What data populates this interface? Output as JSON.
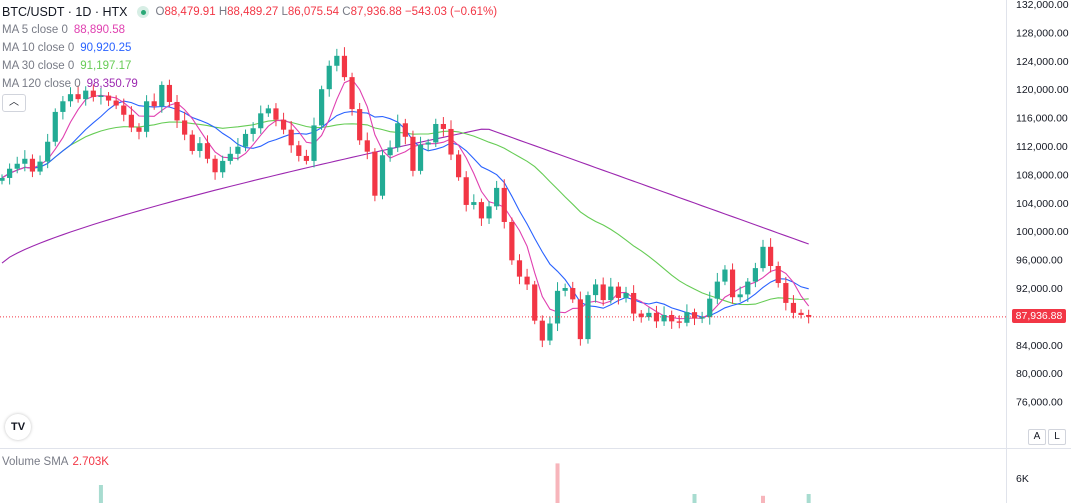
{
  "header": {
    "symbol": "BTC/USDT · 1D · HTX",
    "open_label": "O",
    "open": "88,479.91",
    "high_label": "H",
    "high": "88,489.27",
    "low_label": "L",
    "low": "86,075.54",
    "close_label": "C",
    "close": "87,936.88",
    "change": "−543.03 (−0.61%)"
  },
  "indicators": [
    {
      "label": "MA 5 close 0",
      "value": "88,890.58",
      "color": "#e040b0"
    },
    {
      "label": "MA 10 close 0",
      "value": "90,920.25",
      "color": "#2962ff"
    },
    {
      "label": "MA 30 close 0",
      "value": "91,197.17",
      "color": "#66cc55"
    },
    {
      "label": "MA 120 close 0",
      "value": "98,350.79",
      "color": "#9c27b0"
    }
  ],
  "collapse_icon": "chevron-up-icon",
  "logo_text": "TV",
  "volume": {
    "label": "Volume SMA",
    "value": "2.703K",
    "axis_tick": "6K"
  },
  "axis_buttons": [
    "A",
    "L"
  ],
  "last_price_label": "87,936.88",
  "colors": {
    "up": "#22ab94",
    "down": "#f23645",
    "last_price_line": "#f23645"
  },
  "chart_data": {
    "type": "candlestick",
    "ylim": [
      72000,
      132000
    ],
    "y_ticks": [
      "76,000.00",
      "80,000.00",
      "84,000.00",
      "88,000.00",
      "92,000.00",
      "96,000.00",
      "100,000.00",
      "104,000.00",
      "108,000.00",
      "112,000.00",
      "116,000.00",
      "120,000.00",
      "124,000.00",
      "128,000.00",
      "132,000.00"
    ],
    "y_tick_values": [
      76000,
      80000,
      84000,
      88000,
      92000,
      96000,
      100000,
      104000,
      108000,
      112000,
      116000,
      120000,
      124000,
      128000,
      132000
    ],
    "last_price": 87936.88,
    "close_series": [
      107500,
      108800,
      109500,
      110200,
      108400,
      109800,
      112600,
      116800,
      118300,
      119300,
      118600,
      119800,
      118900,
      119100,
      118400,
      117700,
      116400,
      114600,
      114000,
      118300,
      117600,
      120600,
      118200,
      115600,
      113600,
      111300,
      112400,
      110200,
      108300,
      109900,
      110900,
      111900,
      113700,
      114500,
      116600,
      117300,
      115700,
      114300,
      112100,
      110600,
      109900,
      114900,
      120000,
      123300,
      124700,
      121700,
      117200,
      112800,
      111200,
      105000,
      110700,
      111800,
      115200,
      113300,
      108500,
      112200,
      112500,
      115100,
      114400,
      110800,
      107600,
      103700,
      104100,
      101800,
      103500,
      106100,
      101300,
      95900,
      93600,
      92500,
      87400,
      84600,
      87000,
      91600,
      92000,
      90400,
      84800,
      91000,
      92500,
      90300,
      92200,
      90600,
      91300,
      88400,
      87900,
      88500,
      87300,
      88200,
      87300,
      87100,
      88600,
      87700,
      87900,
      90500,
      92900,
      94600,
      90700,
      91100,
      92900,
      94800,
      97800,
      95100,
      92700,
      89900,
      88500,
      88200,
      87936.88
    ],
    "ma_ranges": {
      "ma30": [
        107000,
        113000
      ],
      "ma120": [
        96500,
        114500
      ]
    },
    "volume_bars": [
      {
        "day": 13,
        "value": 1.0,
        "dir": "up"
      },
      {
        "day": 73,
        "value": 2.2,
        "dir": "down"
      },
      {
        "day": 91,
        "value": 0.5,
        "dir": "up"
      },
      {
        "day": 100,
        "value": 0.4,
        "dir": "down"
      },
      {
        "day": 106,
        "value": 0.5,
        "dir": "up"
      }
    ]
  }
}
